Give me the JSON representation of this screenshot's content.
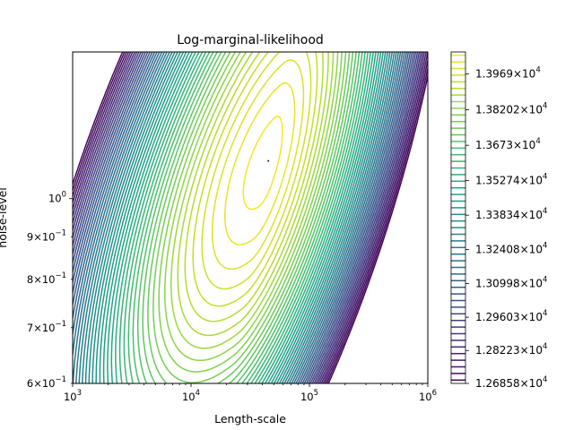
{
  "chart_data": {
    "type": "contour",
    "title": "Log-marginal-likelihood",
    "xlabel": "Length-scale",
    "ylabel": "noise-level",
    "xscale": "log",
    "yscale": "log",
    "xlim": [
      1000,
      1000000
    ],
    "ylim": [
      0.6,
      1.5
    ],
    "colormap": "viridis",
    "x_ticks": [
      {
        "value": 1000,
        "base": "10",
        "exp": "3"
      },
      {
        "value": 10000,
        "base": "10",
        "exp": "4"
      },
      {
        "value": 100000,
        "base": "10",
        "exp": "5"
      },
      {
        "value": 1000000,
        "base": "10",
        "exp": "6"
      }
    ],
    "y_ticks": [
      {
        "value": 0.6,
        "mant": "6×10",
        "exp": "−1"
      },
      {
        "value": 0.7,
        "mant": "7×10",
        "exp": "−1"
      },
      {
        "value": 0.8,
        "mant": "8×10",
        "exp": "−1"
      },
      {
        "value": 0.9,
        "mant": "9×10",
        "exp": "−1"
      },
      {
        "value": 1.0,
        "mant": "10",
        "exp": "0"
      }
    ],
    "optimum": {
      "length_scale": 45000,
      "noise_level": 1.11
    },
    "levels": {
      "min": 12685.8,
      "max": 14060,
      "count": 50
    },
    "colorbar_ticks": [
      {
        "value": 12685.8,
        "mant": "1.26858×10",
        "exp": "4"
      },
      {
        "value": 12822.3,
        "mant": "1.28223×10",
        "exp": "4"
      },
      {
        "value": 12960.3,
        "mant": "1.29603×10",
        "exp": "4"
      },
      {
        "value": 13099.8,
        "mant": "1.30998×10",
        "exp": "4"
      },
      {
        "value": 13240.8,
        "mant": "1.32408×10",
        "exp": "4"
      },
      {
        "value": 13383.4,
        "mant": "1.33834×10",
        "exp": "4"
      },
      {
        "value": 13527.4,
        "mant": "1.35274×10",
        "exp": "4"
      },
      {
        "value": 13673.0,
        "mant": "1.3673×10",
        "exp": "4"
      },
      {
        "value": 13820.2,
        "mant": "1.38202×10",
        "exp": "4"
      },
      {
        "value": 13969.0,
        "mant": "1.3969×10",
        "exp": "4"
      }
    ]
  }
}
